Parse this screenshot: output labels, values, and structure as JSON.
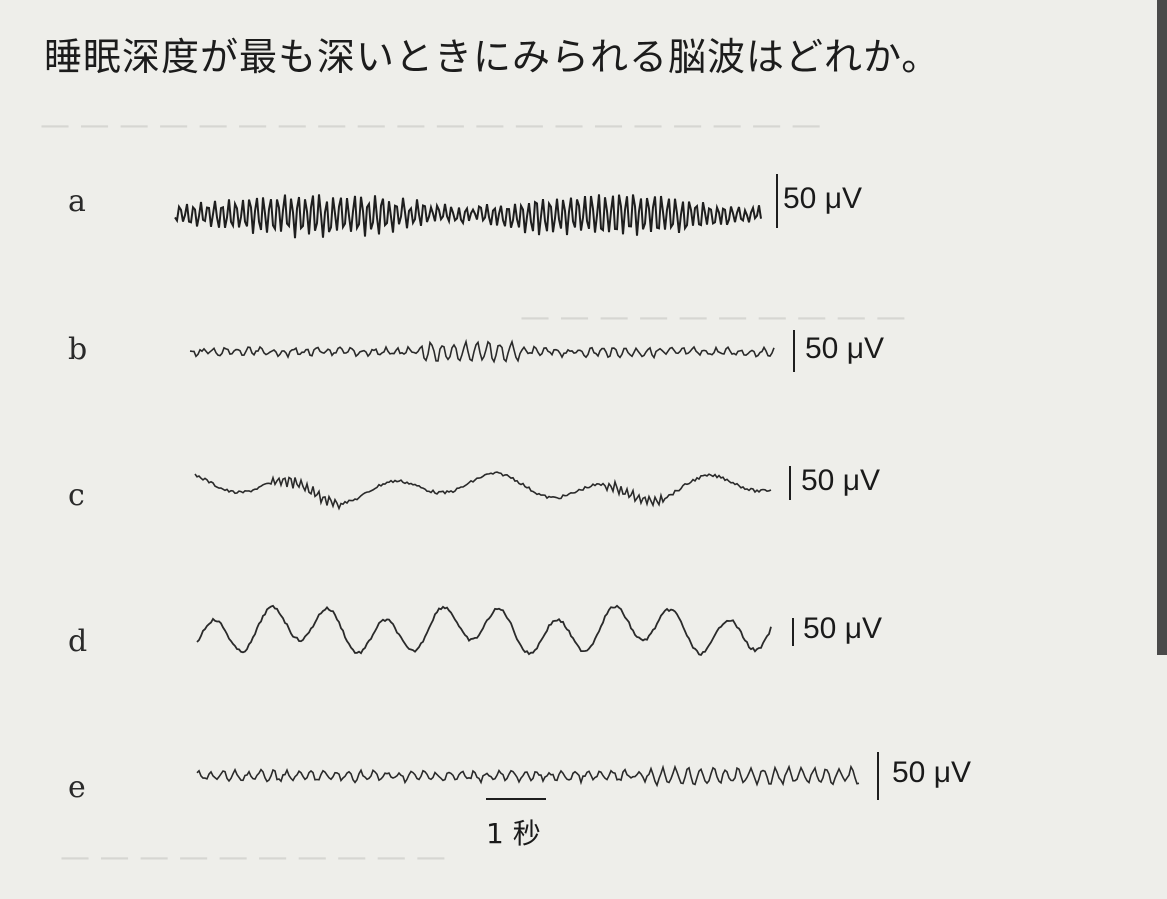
{
  "question": "睡眠深度が最も深いときにみられる脳波はどれか。",
  "options": [
    {
      "letter": "a",
      "scale_label": "50 μV"
    },
    {
      "letter": "b",
      "scale_label": "50 μV"
    },
    {
      "letter": "c",
      "scale_label": "50 μV"
    },
    {
      "letter": "d",
      "scale_label": "50 μV"
    },
    {
      "letter": "e",
      "scale_label": "50 μV"
    }
  ],
  "time_scale_label": "1 秒",
  "colors": {
    "background": "#eeeeea",
    "ink": "#1e1e1e",
    "bleed": "#d6d6d2"
  }
}
